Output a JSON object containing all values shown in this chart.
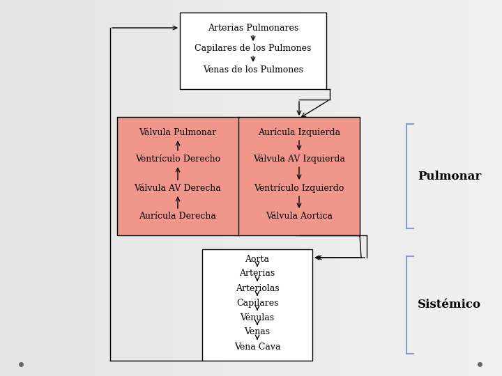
{
  "bg_color": "#e8e8e8",
  "box_pulmonar_color": "#f0968a",
  "box_white_color": "#ffffff",
  "box_border_color": "#000000",
  "text_color": "#000000",
  "arrow_color": "#000000",
  "bracket_color": "#8899cc",
  "pulmonar_top_items": [
    "Arterias Pulmonares",
    "Capilares de los Pulmones",
    "Venas de los Pulmones"
  ],
  "heart_left_items": [
    "Válvula Pulmonar",
    "Ventrículo Derecho",
    "Válvula AV Derecha",
    "Aurícula Derecha"
  ],
  "heart_right_items": [
    "Aurícula Izquierda",
    "Válvula AV Izquierda",
    "Ventrículo Izquierdo",
    "Válvula Aortica"
  ],
  "systemic_items": [
    "Aorta",
    "Arterias",
    "Arteriolas",
    "Capilares",
    "Vénulas",
    "Venas",
    "Vena Cava"
  ],
  "label_pulmonar": "Pulmonar",
  "label_sistemico": "Sistémico",
  "font_size_items": 9,
  "font_size_labels": 12,
  "font_family": "DejaVu Serif"
}
